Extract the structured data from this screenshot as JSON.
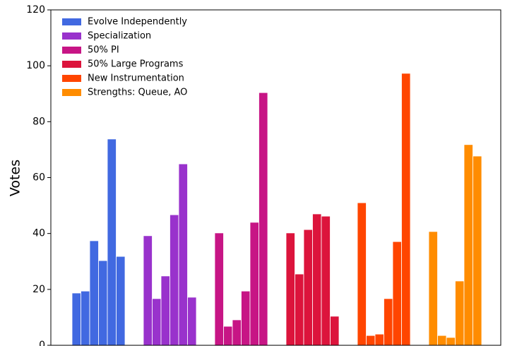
{
  "chart_data": {
    "type": "bar",
    "y_label": "Votes",
    "categories": [
      null,
      null,
      null,
      null,
      null,
      null
    ],
    "series": [
      {
        "name": "Evolve Independently",
        "color": "#4169e1",
        "values": [
          18.7,
          19.4,
          37.4,
          30.3,
          73.8,
          31.8
        ]
      },
      {
        "name": "Specialization",
        "color": "#9932cc",
        "values": [
          39.2,
          16.7,
          24.8,
          46.7,
          64.9,
          17.2
        ]
      },
      {
        "name": "50% PI",
        "color": "#c71585",
        "values": [
          40.2,
          6.8,
          9.1,
          19.4,
          44,
          90.4
        ]
      },
      {
        "name": "50% Large Programs",
        "color": "#dc143c",
        "values": [
          40.2,
          25.5,
          41.4,
          47,
          46.2,
          10.4
        ]
      },
      {
        "name": "New Instrumentation",
        "color": "#ff4500",
        "values": [
          51,
          3.5,
          4,
          16.7,
          37.1,
          97.3
        ]
      },
      {
        "name": "Strengths: Queue, AO",
        "color": "#ff8c00",
        "values": [
          40.7,
          3.5,
          2.8,
          23,
          71.8,
          67.7
        ]
      }
    ],
    "ylim": [
      0,
      120
    ],
    "yticks": [
      0,
      20,
      40,
      60,
      80,
      100,
      120
    ],
    "legend": "upper left"
  }
}
